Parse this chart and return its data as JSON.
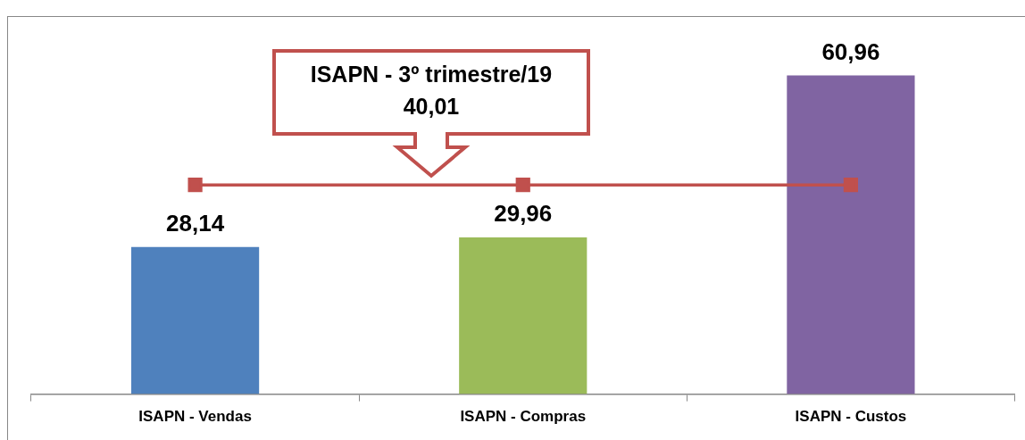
{
  "chart_data": {
    "type": "bar",
    "categories": [
      "ISAPN - Vendas",
      "ISAPN - Compras",
      "ISAPN - Custos"
    ],
    "tick_labels": "x",
    "grid": false,
    "legend": false,
    "annotations": [
      {
        "text": "ISAPN - 3º trimestre/19\n40,01",
        "y": 40.01
      }
    ],
    "series": [
      {
        "colors": [
          "#4f81bd",
          "#9bbb59",
          "#8064a2"
        ],
        "values": [
          28.14,
          29.96,
          60.96
        ],
        "value_labels": [
          "28,14",
          "29,96",
          "60,96"
        ]
      },
      {
        "type": "line",
        "color": "#c0504d",
        "values": [
          40.01,
          40.01,
          40.01
        ],
        "marker": "square",
        "line_style": "solid"
      }
    ]
  }
}
